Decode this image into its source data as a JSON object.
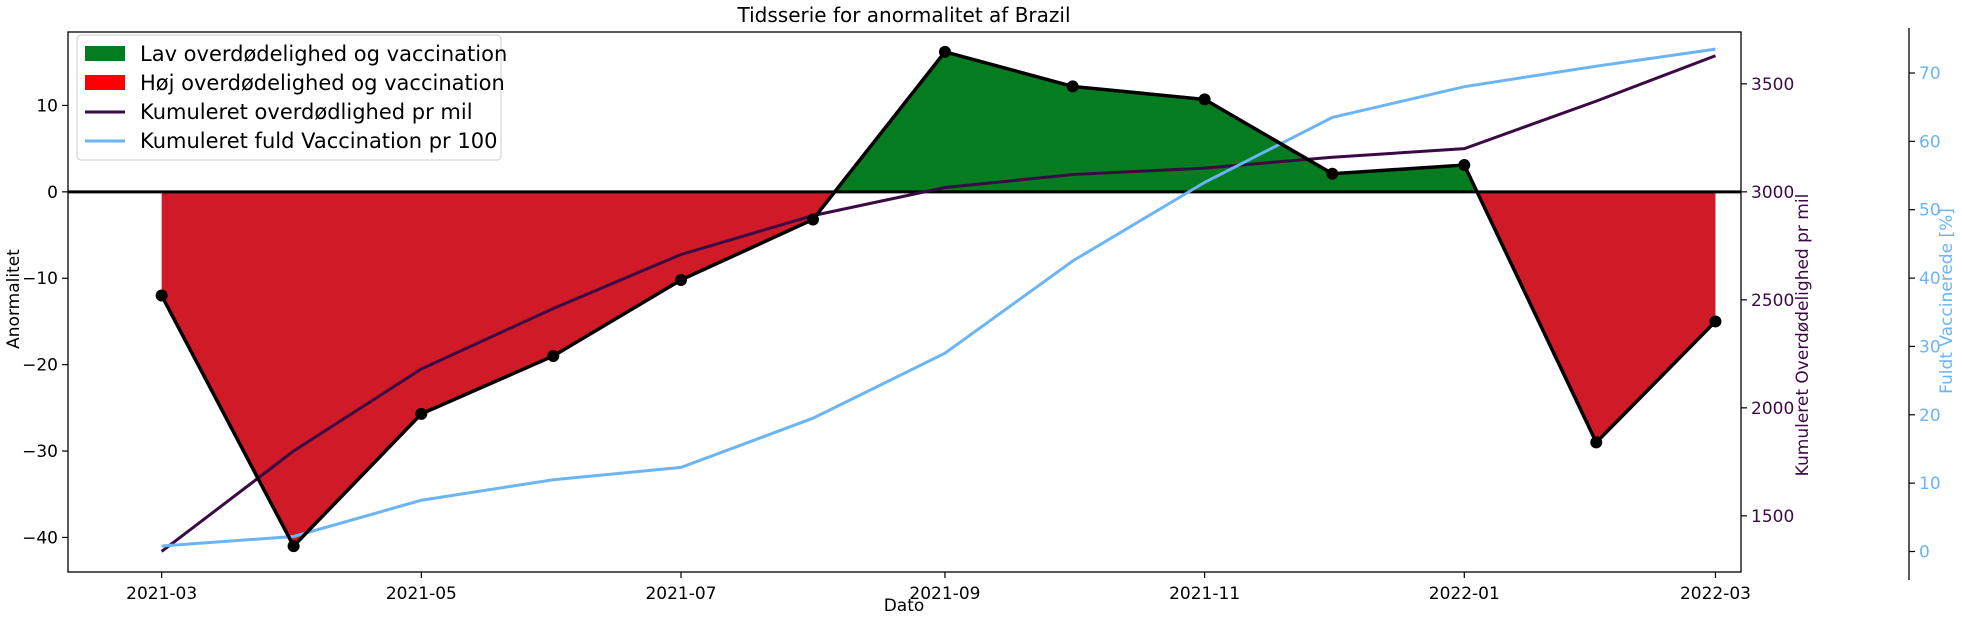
{
  "chart_data": {
    "type": "line",
    "title": "Tidsserie for anormalitet af Brazil",
    "xlabel": "Dato",
    "ylabel": "Anormalitet",
    "ylabel_right": "Kumuleret Overdødelighed pr mil",
    "ylabel_right2": "Fuldt Vaccinerede [%]",
    "x": [
      "2021-03",
      "2021-04",
      "2021-05",
      "2021-06",
      "2021-07",
      "2021-08",
      "2021-09",
      "2021-10",
      "2021-11",
      "2021-12",
      "2022-01",
      "2022-02",
      "2022-03"
    ],
    "x_ticks": [
      "2021-03",
      "2021-05",
      "2021-07",
      "2021-09",
      "2021-11",
      "2022-01",
      "2022-03"
    ],
    "xlim": [
      "2021-02-07",
      "2022-03-07"
    ],
    "ylim": [
      -44,
      18.5
    ],
    "yticks": [
      -40,
      -30,
      -20,
      -10,
      0,
      10
    ],
    "ylim_right": [
      1240,
      3740
    ],
    "yticks_right": [
      1500,
      2000,
      2500,
      3000,
      3500
    ],
    "ylim_right2": [
      -3,
      76
    ],
    "yticks_right2": [
      0,
      10,
      20,
      30,
      40,
      50,
      60,
      70
    ],
    "series": [
      {
        "name": "Anormalitet",
        "axis": "left",
        "color": "#000000",
        "values": [
          -12,
          -41,
          -25.7,
          -19,
          -10.2,
          -3.2,
          16.2,
          12.2,
          10.7,
          2.1,
          3.1,
          -29,
          -15
        ]
      },
      {
        "name": "Kumuleret overdødlighed pr mil",
        "axis": "right",
        "color": "#3b0a45",
        "values": [
          1335,
          1800,
          2180,
          2460,
          2710,
          2890,
          3020,
          3080,
          3110,
          3160,
          3200,
          3420,
          3630
        ]
      },
      {
        "name": "Kumuleret fuld Vaccination pr 100",
        "axis": "right2",
        "color": "#6cb5f5",
        "values": [
          0.8,
          2.2,
          7.5,
          10.5,
          12.3,
          19.5,
          29,
          42.5,
          54,
          63.5,
          68,
          71,
          73.5
        ]
      }
    ],
    "fills": [
      {
        "name": "Lav overdødelighed og vaccination",
        "color": "#067c21",
        "where": "above zero"
      },
      {
        "name": "Høj overdødelighed og vaccination",
        "color": "#d11a27",
        "where": "below zero"
      }
    ],
    "legend": {
      "position": "top-left",
      "entries": [
        {
          "label": "Lav overdødelighed og vaccination",
          "kind": "patch",
          "color": "#067c21"
        },
        {
          "label": "Høj overdødelighed og vaccination",
          "kind": "patch",
          "color": "#ff0000"
        },
        {
          "label": "Kumuleret overdødlighed pr mil",
          "kind": "line",
          "color": "#3b0a45"
        },
        {
          "label": "Kumuleret fuld Vaccination pr 100",
          "kind": "line",
          "color": "#6cb5f5"
        }
      ]
    },
    "colors": {
      "right_axis": "#3b0a45",
      "right2_axis": "#6cb5f5"
    },
    "grid": false
  }
}
